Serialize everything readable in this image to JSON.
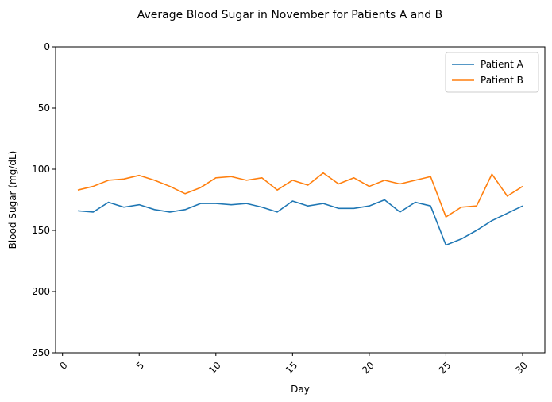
{
  "chart_data": {
    "type": "line",
    "title": "Average Blood Sugar in November for Patients A and B",
    "xlabel": "Day",
    "ylabel": "Blood Sugar (mg/dL)",
    "xlim": [
      -0.45,
      31.45
    ],
    "ylim": [
      0,
      250
    ],
    "y_inverted": true,
    "x_ticks": [
      0,
      5,
      10,
      15,
      20,
      25,
      30
    ],
    "x_tick_rotation": 45,
    "y_ticks": [
      0,
      50,
      100,
      150,
      200,
      250
    ],
    "grid": false,
    "legend_position": "top-right",
    "x": [
      1,
      2,
      3,
      4,
      5,
      6,
      7,
      8,
      9,
      10,
      11,
      12,
      13,
      14,
      15,
      16,
      17,
      18,
      19,
      20,
      21,
      22,
      23,
      24,
      25,
      26,
      27,
      28,
      29,
      30
    ],
    "series": [
      {
        "name": "Patient A",
        "color": "#1f77b4",
        "values": [
          134,
          135,
          127,
          131,
          129,
          133,
          135,
          133,
          128,
          128,
          129,
          128,
          131,
          135,
          126,
          130,
          128,
          132,
          132,
          130,
          125,
          135,
          127,
          130,
          162,
          157,
          150,
          142,
          136,
          130
        ]
      },
      {
        "name": "Patient B",
        "color": "#ff7f0e",
        "values": [
          117,
          114,
          109,
          108,
          105,
          109,
          114,
          120,
          115,
          107,
          106,
          109,
          107,
          117,
          109,
          113,
          103,
          112,
          107,
          114,
          109,
          112,
          109,
          106,
          139,
          131,
          130,
          104,
          122,
          114
        ]
      }
    ]
  }
}
